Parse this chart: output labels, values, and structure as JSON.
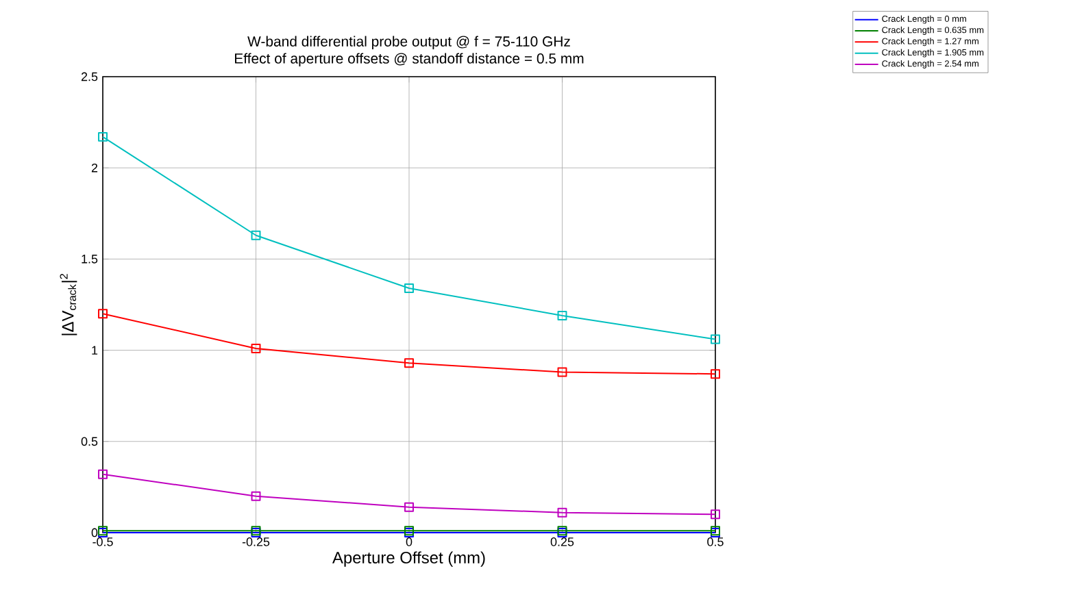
{
  "chart_data": {
    "type": "line",
    "title": "W-band differential probe output @ f = 75-110 GHz",
    "subtitle": "Effect of aperture offsets @ standoff distance = 0.5 mm",
    "xlabel": "Aperture Offset (mm)",
    "ylabel": "|ΔV$_{crack}$|$^{2}$",
    "x": [
      -0.5,
      -0.25,
      0,
      0.25,
      0.5
    ],
    "series": [
      {
        "name": "Crack Length =    0 mm",
        "color": "#0000ff",
        "values": [
          0,
          0,
          0,
          0,
          0
        ]
      },
      {
        "name": "Crack Length = 0.635 mm",
        "color": "#008000",
        "values": [
          0.01,
          0.01,
          0.01,
          0.01,
          0.01
        ]
      },
      {
        "name": "Crack Length =  1.27 mm",
        "color": "#ff0000",
        "values": [
          1.2,
          1.01,
          0.93,
          0.88,
          0.87
        ]
      },
      {
        "name": "Crack Length = 1.905 mm",
        "color": "#00bfbf",
        "values": [
          2.17,
          1.63,
          1.34,
          1.19,
          1.06
        ]
      },
      {
        "name": "Crack Length =  2.54 mm",
        "color": "#bf00bf",
        "values": [
          0.32,
          0.2,
          0.14,
          0.11,
          0.1
        ]
      }
    ],
    "xlim": [
      -0.5,
      0.5
    ],
    "ylim": [
      0,
      2.5
    ],
    "xticks": [
      -0.5,
      -0.25,
      0,
      0.25,
      0.5
    ],
    "yticks": [
      0,
      0.5,
      1,
      1.5,
      2,
      2.5
    ],
    "grid": true,
    "legend": "top right",
    "marker": "square",
    "line_style": "solid"
  }
}
